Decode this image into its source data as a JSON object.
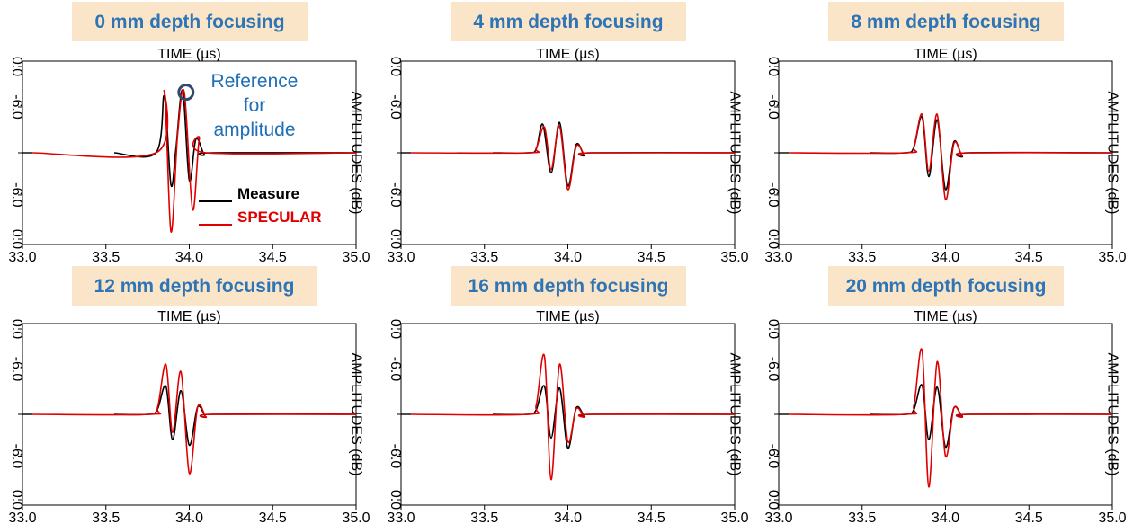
{
  "colors": {
    "title_bg": "#fbe5c8",
    "title_text": "#2e75b6",
    "measure": "#000000",
    "specular": "#e00000",
    "annotation": "#1f6fb5",
    "marker": "#2f4a6e"
  },
  "chart_data": [
    {
      "type": "line",
      "title": "0 mm depth focusing",
      "xlabel": "TIME (µs)",
      "ylabel": "AMPLITUDES (dB)",
      "xlim": [
        33.0,
        35.0
      ],
      "ylim": [
        -1,
        1
      ],
      "xticks": [
        "33.0",
        "33.5",
        "34.0",
        "34.5",
        "35.0"
      ],
      "yticks": [
        "0.0",
        "-6.0",
        "",
        "-6.0",
        "0.0"
      ],
      "legend": [
        {
          "name": "Measure",
          "color": "#000000"
        },
        {
          "name": "SPECULAR",
          "color": "#e00000"
        }
      ],
      "annotation": {
        "lines": [
          "Reference",
          "for",
          "amplitude"
        ],
        "marker_x": 33.98,
        "marker_y": 0.66
      },
      "series": [
        {
          "name": "Measure",
          "peaks": [
            [
              33.85,
              0.62
            ],
            [
              33.89,
              -0.35
            ],
            [
              33.92,
              0.05
            ],
            [
              33.96,
              0.68
            ],
            [
              34.0,
              -0.3
            ],
            [
              34.04,
              0.15
            ],
            [
              34.09,
              -0.02
            ]
          ]
        },
        {
          "name": "SPECULAR",
          "peaks": [
            [
              33.85,
              0.66
            ],
            [
              33.89,
              -0.86
            ],
            [
              33.93,
              0.2
            ],
            [
              33.97,
              0.66
            ],
            [
              34.02,
              -0.62
            ],
            [
              34.06,
              0.15
            ]
          ]
        }
      ]
    },
    {
      "type": "line",
      "title": "4 mm depth focusing",
      "xlabel": "TIME (µs)",
      "ylabel": "AMPLITUDES (dB)",
      "xlim": [
        33.0,
        35.0
      ],
      "ylim": [
        -1,
        1
      ],
      "xticks": [
        "33.0",
        "33.5",
        "34.0",
        "34.5",
        "35.0"
      ],
      "yticks": [
        "0.0",
        "-6.0",
        "",
        "-6.0",
        "0.0"
      ],
      "series": [
        {
          "name": "Measure",
          "peaks": [
            [
              33.81,
              0.04
            ],
            [
              33.85,
              0.31
            ],
            [
              33.9,
              -0.22
            ],
            [
              33.95,
              0.33
            ],
            [
              34.0,
              -0.36
            ],
            [
              34.05,
              0.09
            ],
            [
              34.1,
              -0.03
            ]
          ]
        },
        {
          "name": "SPECULAR",
          "peaks": [
            [
              33.81,
              0.05
            ],
            [
              33.86,
              0.28
            ],
            [
              33.9,
              -0.18
            ],
            [
              33.95,
              0.29
            ],
            [
              34.0,
              -0.4
            ],
            [
              34.05,
              0.07
            ],
            [
              34.1,
              -0.02
            ]
          ]
        }
      ]
    },
    {
      "type": "line",
      "title": "8 mm depth focusing",
      "xlabel": "TIME (µs)",
      "ylabel": "AMPLITUDES (dB)",
      "xlim": [
        33.0,
        35.0
      ],
      "ylim": [
        -1,
        1
      ],
      "xticks": [
        "33.0",
        "33.5",
        "34.0",
        "34.5",
        "35.0"
      ],
      "yticks": [
        "0.0",
        "-6.0",
        "",
        "-6.0",
        "0.0"
      ],
      "series": [
        {
          "name": "Measure",
          "peaks": [
            [
              33.81,
              0.06
            ],
            [
              33.86,
              0.39
            ],
            [
              33.9,
              -0.26
            ],
            [
              33.95,
              0.36
            ],
            [
              34.0,
              -0.4
            ],
            [
              34.05,
              0.12
            ],
            [
              34.1,
              -0.04
            ]
          ]
        },
        {
          "name": "SPECULAR",
          "peaks": [
            [
              33.81,
              0.07
            ],
            [
              33.86,
              0.42
            ],
            [
              33.9,
              -0.2
            ],
            [
              33.95,
              0.42
            ],
            [
              34.0,
              -0.51
            ],
            [
              34.05,
              0.1
            ],
            [
              34.1,
              -0.03
            ]
          ]
        }
      ]
    },
    {
      "type": "line",
      "title": "12 mm depth focusing",
      "xlabel": "TIME (µs)",
      "ylabel": "AMPLITUDES (dB)",
      "xlim": [
        33.0,
        35.0
      ],
      "ylim": [
        -1,
        1
      ],
      "xticks": [
        "33.0",
        "33.5",
        "34.0",
        "34.5",
        "35.0"
      ],
      "yticks": [
        "0.0",
        "-6.0",
        "",
        "-6.0",
        "0.0"
      ],
      "series": [
        {
          "name": "Measure",
          "peaks": [
            [
              33.81,
              0.06
            ],
            [
              33.86,
              0.31
            ],
            [
              33.9,
              -0.28
            ],
            [
              33.95,
              0.26
            ],
            [
              34.0,
              -0.34
            ],
            [
              34.05,
              0.08
            ],
            [
              34.1,
              -0.03
            ]
          ]
        },
        {
          "name": "SPECULAR",
          "peaks": [
            [
              33.81,
              0.08
            ],
            [
              33.86,
              0.55
            ],
            [
              33.9,
              -0.2
            ],
            [
              33.95,
              0.47
            ],
            [
              34.0,
              -0.65
            ],
            [
              34.05,
              0.08
            ],
            [
              34.1,
              -0.03
            ]
          ]
        }
      ]
    },
    {
      "type": "line",
      "title": "16 mm depth focusing",
      "xlabel": "TIME (µs)",
      "ylabel": "AMPLITUDES (dB)",
      "xlim": [
        33.0,
        35.0
      ],
      "ylim": [
        -1,
        1
      ],
      "xticks": [
        "33.0",
        "33.5",
        "34.0",
        "34.5",
        "35.0"
      ],
      "yticks": [
        "0.0",
        "-6.0",
        "",
        "-6.0",
        "0.0"
      ],
      "series": [
        {
          "name": "Measure",
          "peaks": [
            [
              33.81,
              0.05
            ],
            [
              33.86,
              0.31
            ],
            [
              33.9,
              -0.26
            ],
            [
              33.95,
              0.29
            ],
            [
              34.0,
              -0.37
            ],
            [
              34.05,
              0.07
            ],
            [
              34.1,
              -0.02
            ]
          ]
        },
        {
          "name": "SPECULAR",
          "peaks": [
            [
              33.81,
              0.1
            ],
            [
              33.86,
              0.64
            ],
            [
              33.9,
              -0.72
            ],
            [
              33.95,
              0.55
            ],
            [
              34.0,
              -0.3
            ],
            [
              34.05,
              0.06
            ],
            [
              34.1,
              -0.03
            ]
          ]
        }
      ]
    },
    {
      "type": "line",
      "title": "20 mm depth focusing",
      "xlabel": "TIME (µs)",
      "ylabel": "AMPLITUDES (dB)",
      "xlim": [
        33.0,
        35.0
      ],
      "ylim": [
        -1,
        1
      ],
      "xticks": [
        "33.0",
        "33.5",
        "34.0",
        "34.5",
        "35.0"
      ],
      "yticks": [
        "0.0",
        "-6.0",
        "",
        "-6.0",
        "0.0"
      ],
      "series": [
        {
          "name": "Measure",
          "peaks": [
            [
              33.81,
              0.05
            ],
            [
              33.86,
              0.32
            ],
            [
              33.9,
              -0.28
            ],
            [
              33.95,
              0.3
            ],
            [
              34.0,
              -0.36
            ],
            [
              34.05,
              0.07
            ],
            [
              34.1,
              -0.02
            ]
          ]
        },
        {
          "name": "SPECULAR",
          "peaks": [
            [
              33.81,
              0.1
            ],
            [
              33.86,
              0.7
            ],
            [
              33.9,
              -0.8
            ],
            [
              33.95,
              0.58
            ],
            [
              34.0,
              -0.46
            ],
            [
              34.05,
              0.07
            ],
            [
              34.1,
              -0.03
            ]
          ]
        }
      ]
    }
  ]
}
